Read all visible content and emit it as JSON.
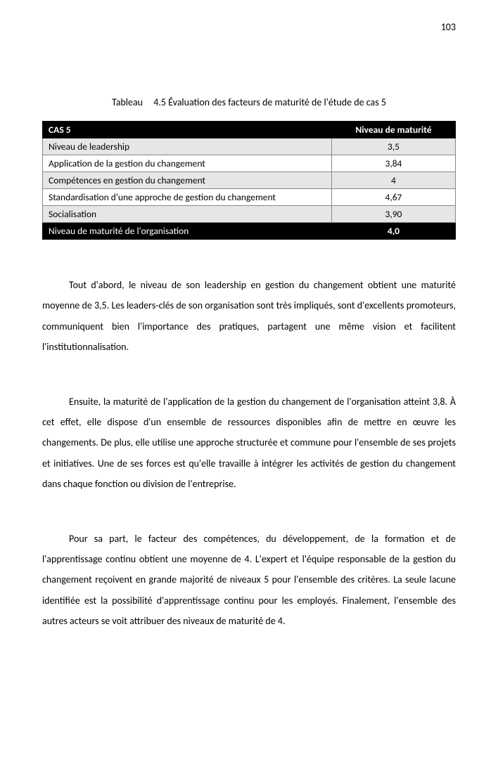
{
  "page_number": "103",
  "caption": {
    "label": "Tableau",
    "text": "4.5 Évaluation des facteurs de maturité de l'étude de cas 5"
  },
  "table": {
    "header": {
      "factor": "CAS 5",
      "value": "Niveau de maturité"
    },
    "rows": [
      {
        "factor": "Niveau de leadership",
        "value": "3,5",
        "shade": true
      },
      {
        "factor": "Application de la gestion du changement",
        "value": "3,84",
        "shade": false
      },
      {
        "factor": "Compétences en gestion du changement",
        "value": "4",
        "shade": true
      },
      {
        "factor": "Standardisation d'une approche de gestion du changement",
        "value": "4,67",
        "shade": false
      },
      {
        "factor": "Socialisation",
        "value": "3,90",
        "shade": true
      }
    ],
    "footer": {
      "factor": "Niveau de maturité de l'organisation",
      "value": "4,0"
    }
  },
  "paragraphs": [
    "Tout d'abord, le niveau de son leadership en gestion du changement obtient une maturité moyenne de 3,5. Les leaders-clés de son organisation sont très impliqués, sont d'excellents promoteurs, communiquent bien l'importance des pratiques, partagent une même vision et facilitent l'institutionnalisation.",
    "Ensuite, la maturité de l'application de la gestion du changement de l'organisation atteint 3,8. À cet effet, elle dispose d'un ensemble de ressources disponibles afin de mettre en œuvre les changements. De plus, elle utilise une approche structurée et commune pour l'ensemble de ses projets et initiatives. Une de ses forces est qu'elle travaille à intégrer les activités de gestion du changement dans chaque fonction ou division de l'entreprise.",
    "Pour sa part, le facteur des compétences, du développement, de la formation et de l'apprentissage continu obtient une moyenne de 4. L'expert et l'équipe responsable de la gestion du changement reçoivent en grande majorité de niveaux 5 pour l'ensemble des critères. La seule lacune identifiée est la possibilité d'apprentissage continu pour les employés. Finalement, l'ensemble des autres acteurs se voit attribuer des niveaux de maturité de 4."
  ]
}
